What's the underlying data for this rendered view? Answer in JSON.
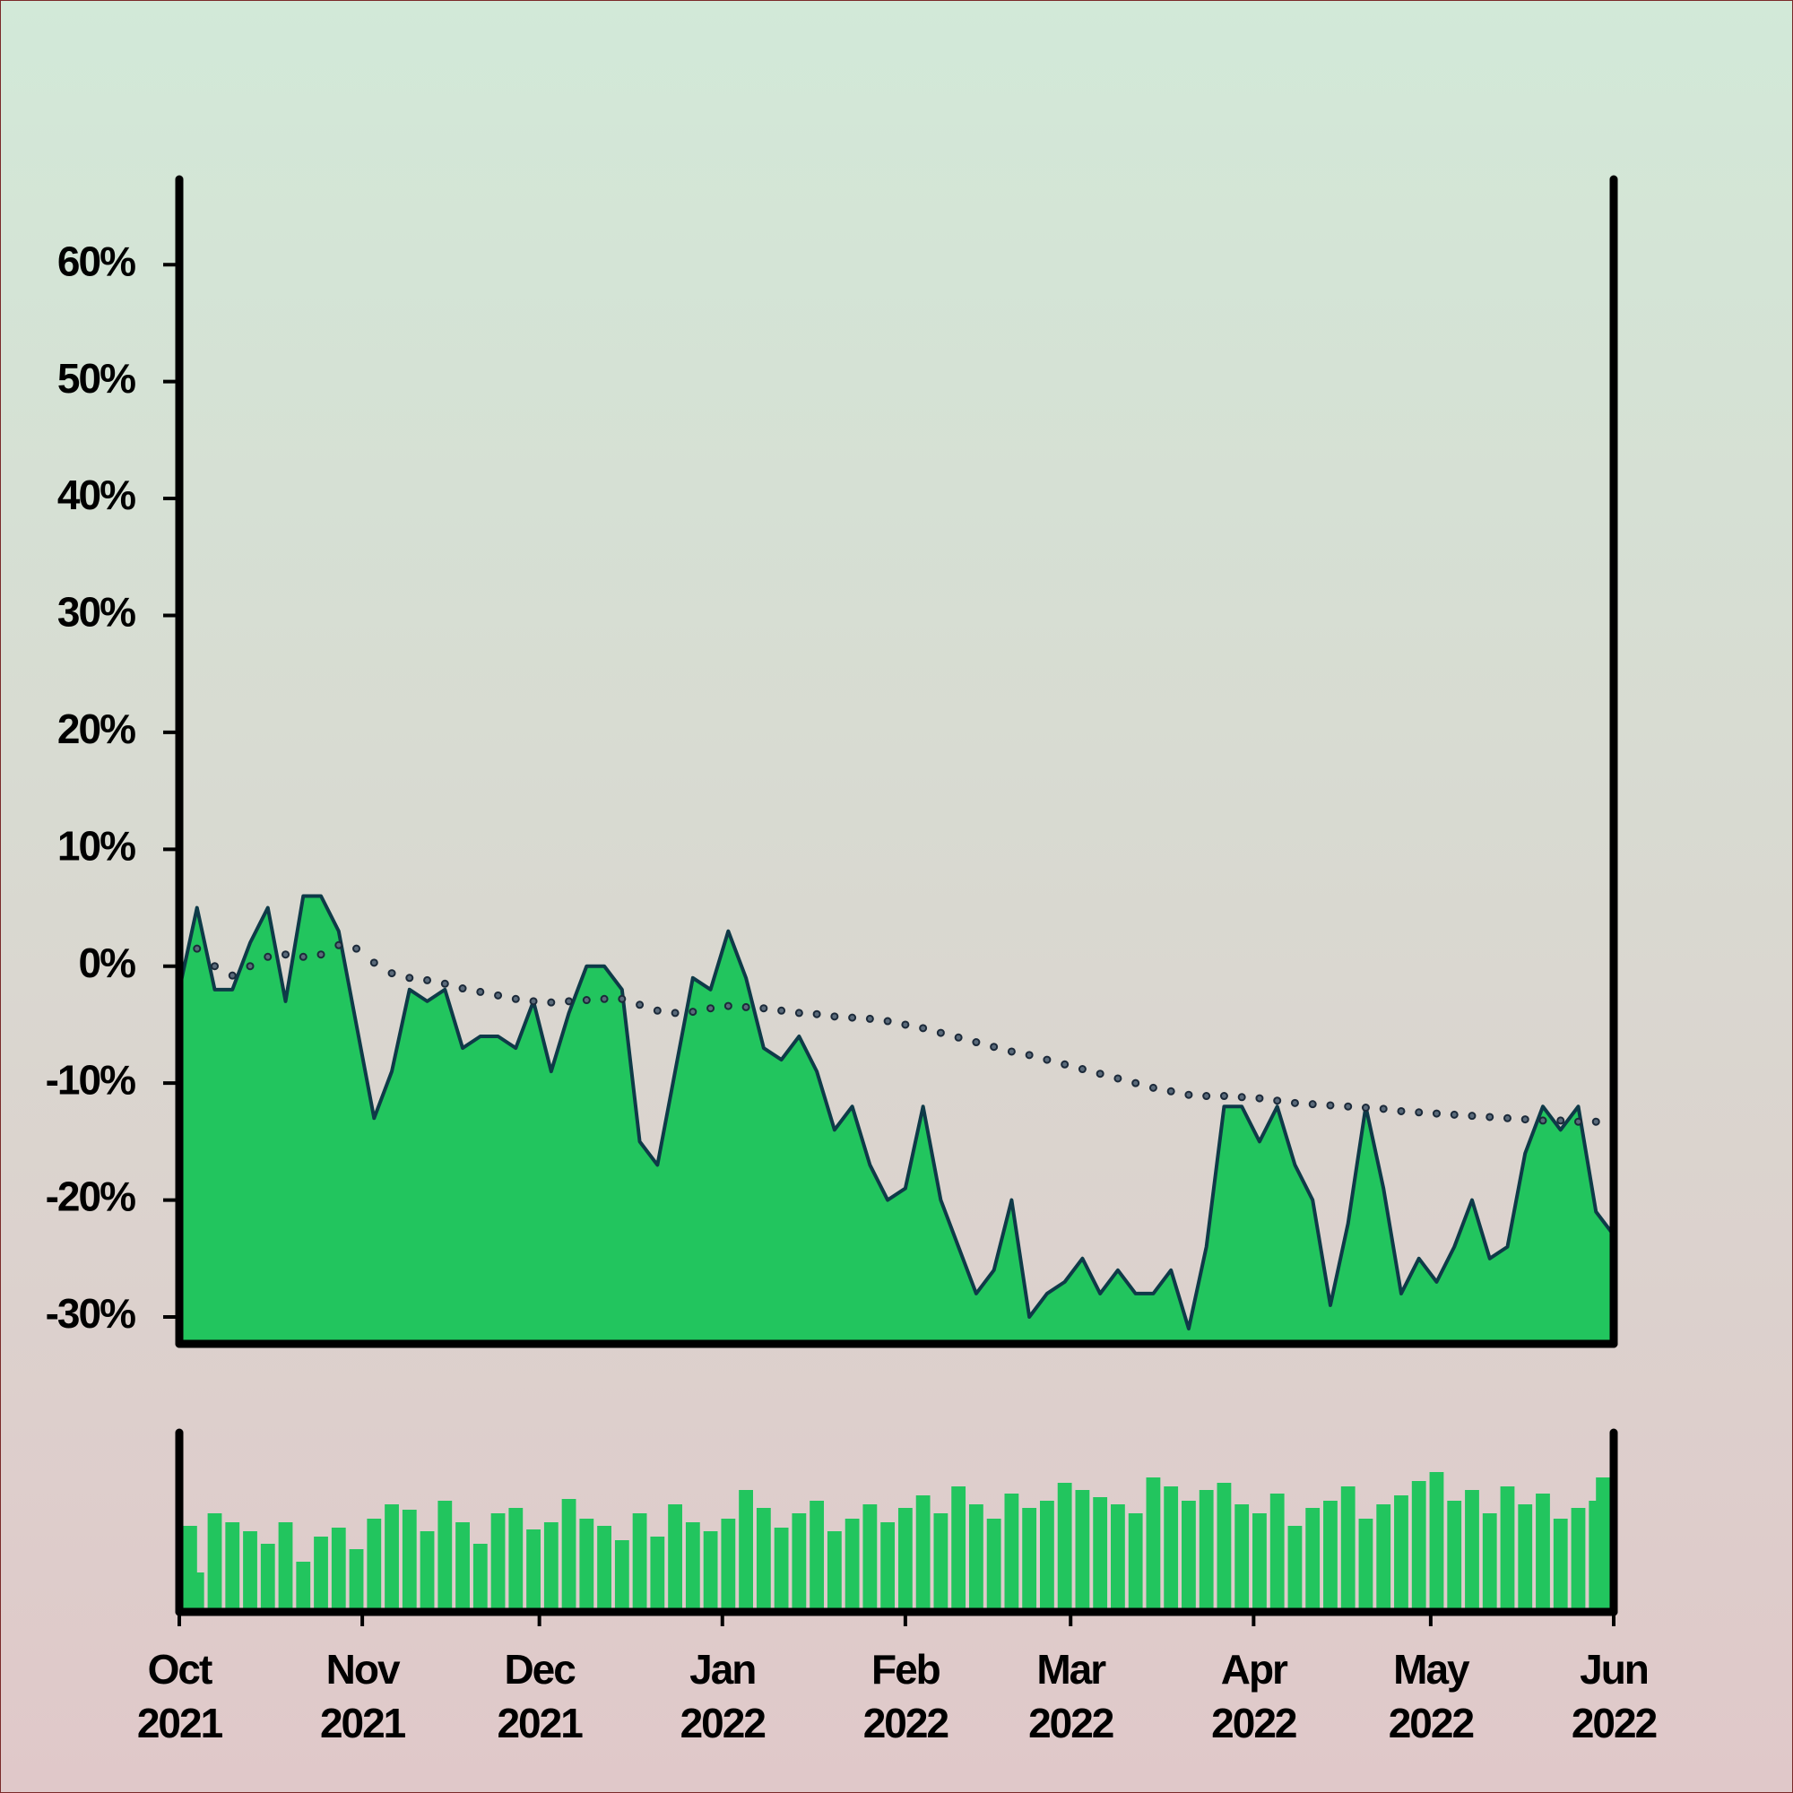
{
  "chart_data": [
    {
      "type": "area",
      "x": [
        0,
        3,
        6,
        9,
        12,
        15,
        18,
        21,
        24,
        27,
        30,
        33,
        36,
        39,
        42,
        45,
        48,
        51,
        54,
        57,
        60,
        63,
        66,
        69,
        72,
        75,
        78,
        81,
        84,
        87,
        90,
        93,
        96,
        99,
        102,
        105,
        108,
        111,
        114,
        117,
        120,
        123,
        126,
        129,
        132,
        135,
        138,
        141,
        144,
        147,
        150,
        153,
        156,
        159,
        162,
        165,
        168,
        171,
        174,
        177,
        180,
        183,
        186,
        189,
        192,
        195,
        198,
        201,
        204,
        207,
        210,
        213,
        216,
        219,
        222,
        225,
        228,
        231,
        234,
        237,
        240,
        243
      ],
      "xlim": [
        0,
        243
      ],
      "ylim": [
        -32.3,
        67.3
      ],
      "yticks": [
        {
          "value": -30,
          "label": "-30%"
        },
        {
          "value": -20,
          "label": "-20%"
        },
        {
          "value": -10,
          "label": "-10%"
        },
        {
          "value": 0,
          "label": "0%"
        },
        {
          "value": 10,
          "label": "10%"
        },
        {
          "value": 20,
          "label": "20%"
        },
        {
          "value": 30,
          "label": "30%"
        },
        {
          "value": 40,
          "label": "40%"
        },
        {
          "value": 50,
          "label": "50%"
        },
        {
          "value": 60,
          "label": "60%"
        }
      ],
      "series": [
        {
          "kind": "area",
          "color": "#22c55e",
          "line_color": "#0e3a48",
          "values": [
            -2,
            5,
            -2,
            -2,
            2,
            5,
            -3,
            6,
            6,
            3,
            -5,
            -13,
            -9,
            -2,
            -3,
            -2,
            -7,
            -6,
            -6,
            -7,
            -3,
            -9,
            -4,
            0,
            0,
            -2,
            -15,
            -17,
            -9,
            -1,
            -2,
            3,
            -1,
            -7,
            -8,
            -6,
            -9,
            -14,
            -12,
            -17,
            -20,
            -19,
            -12,
            -20,
            -24,
            -28,
            -26,
            -20,
            -30,
            -28,
            -27,
            -25,
            -28,
            -26,
            -28,
            -28,
            -26,
            -31,
            -24,
            -12,
            -12,
            -15,
            -12,
            -17,
            -20,
            -29,
            -22,
            -12,
            -19,
            -28,
            -25,
            -27,
            -24,
            -20,
            -25,
            -24,
            -16,
            -12,
            -14,
            -12,
            -21,
            -23
          ]
        },
        {
          "kind": "dotted-line",
          "color": "#1c2a3a",
          "values": [
            0,
            1.5,
            0,
            -0.8,
            0,
            0.8,
            1,
            0.8,
            1,
            1.8,
            1.5,
            0.3,
            -0.6,
            -1,
            -1.2,
            -1.5,
            -1.9,
            -2.2,
            -2.5,
            -2.8,
            -3,
            -3.1,
            -3,
            -2.9,
            -2.8,
            -2.8,
            -3.3,
            -3.8,
            -4,
            -3.9,
            -3.6,
            -3.4,
            -3.5,
            -3.6,
            -3.8,
            -4,
            -4.1,
            -4.3,
            -4.4,
            -4.5,
            -4.7,
            -5,
            -5.3,
            -5.7,
            -6.1,
            -6.5,
            -6.9,
            -7.3,
            -7.6,
            -8,
            -8.4,
            -8.8,
            -9.2,
            -9.6,
            -10,
            -10.4,
            -10.7,
            -11,
            -11.1,
            -11.1,
            -11.2,
            -11.3,
            -11.5,
            -11.7,
            -11.8,
            -11.9,
            -12,
            -12.1,
            -12.2,
            -12.4,
            -12.5,
            -12.6,
            -12.7,
            -12.8,
            -12.9,
            -13,
            -13.1,
            -13.2,
            -13.2,
            -13.3,
            -13.3,
            -13.4
          ]
        }
      ]
    },
    {
      "type": "bar",
      "x": [
        0,
        3,
        6,
        9,
        12,
        15,
        18,
        21,
        24,
        27,
        30,
        33,
        36,
        39,
        42,
        45,
        48,
        51,
        54,
        57,
        60,
        63,
        66,
        69,
        72,
        75,
        78,
        81,
        84,
        87,
        90,
        93,
        96,
        99,
        102,
        105,
        108,
        111,
        114,
        117,
        120,
        123,
        126,
        129,
        132,
        135,
        138,
        141,
        144,
        147,
        150,
        153,
        156,
        159,
        162,
        165,
        168,
        171,
        174,
        177,
        180,
        183,
        186,
        189,
        192,
        195,
        198,
        201,
        204,
        207,
        210,
        213,
        216,
        219,
        222,
        225,
        228,
        231,
        234,
        237,
        240,
        243
      ],
      "xlim": [
        0,
        243
      ],
      "ylim": [
        0,
        100
      ],
      "color": "#22c55e",
      "values": [
        48,
        22,
        55,
        50,
        45,
        38,
        50,
        28,
        42,
        47,
        35,
        52,
        60,
        57,
        45,
        62,
        50,
        38,
        55,
        58,
        46,
        50,
        63,
        52,
        48,
        40,
        55,
        42,
        60,
        50,
        45,
        52,
        68,
        58,
        47,
        55,
        62,
        45,
        52,
        60,
        50,
        58,
        65,
        55,
        70,
        60,
        52,
        66,
        58,
        62,
        72,
        68,
        64,
        60,
        55,
        75,
        70,
        62,
        68,
        72,
        60,
        55,
        66,
        48,
        58,
        62,
        70,
        52,
        60,
        65,
        73,
        78,
        62,
        68,
        55,
        70,
        60,
        66,
        52,
        58,
        62,
        75
      ],
      "xticks": [
        {
          "value": 0,
          "label": [
            "Oct",
            "2021"
          ]
        },
        {
          "value": 31,
          "label": [
            "Nov",
            "2021"
          ]
        },
        {
          "value": 61,
          "label": [
            "Dec",
            "2021"
          ]
        },
        {
          "value": 92,
          "label": [
            "Jan",
            "2022"
          ]
        },
        {
          "value": 123,
          "label": [
            "Feb",
            "2022"
          ]
        },
        {
          "value": 151,
          "label": [
            "Mar",
            "2022"
          ]
        },
        {
          "value": 182,
          "label": [
            "Apr",
            "2022"
          ]
        },
        {
          "value": 212,
          "label": [
            "May",
            "2022"
          ]
        },
        {
          "value": 243,
          "label": [
            "Jun",
            "2022"
          ]
        }
      ]
    }
  ]
}
